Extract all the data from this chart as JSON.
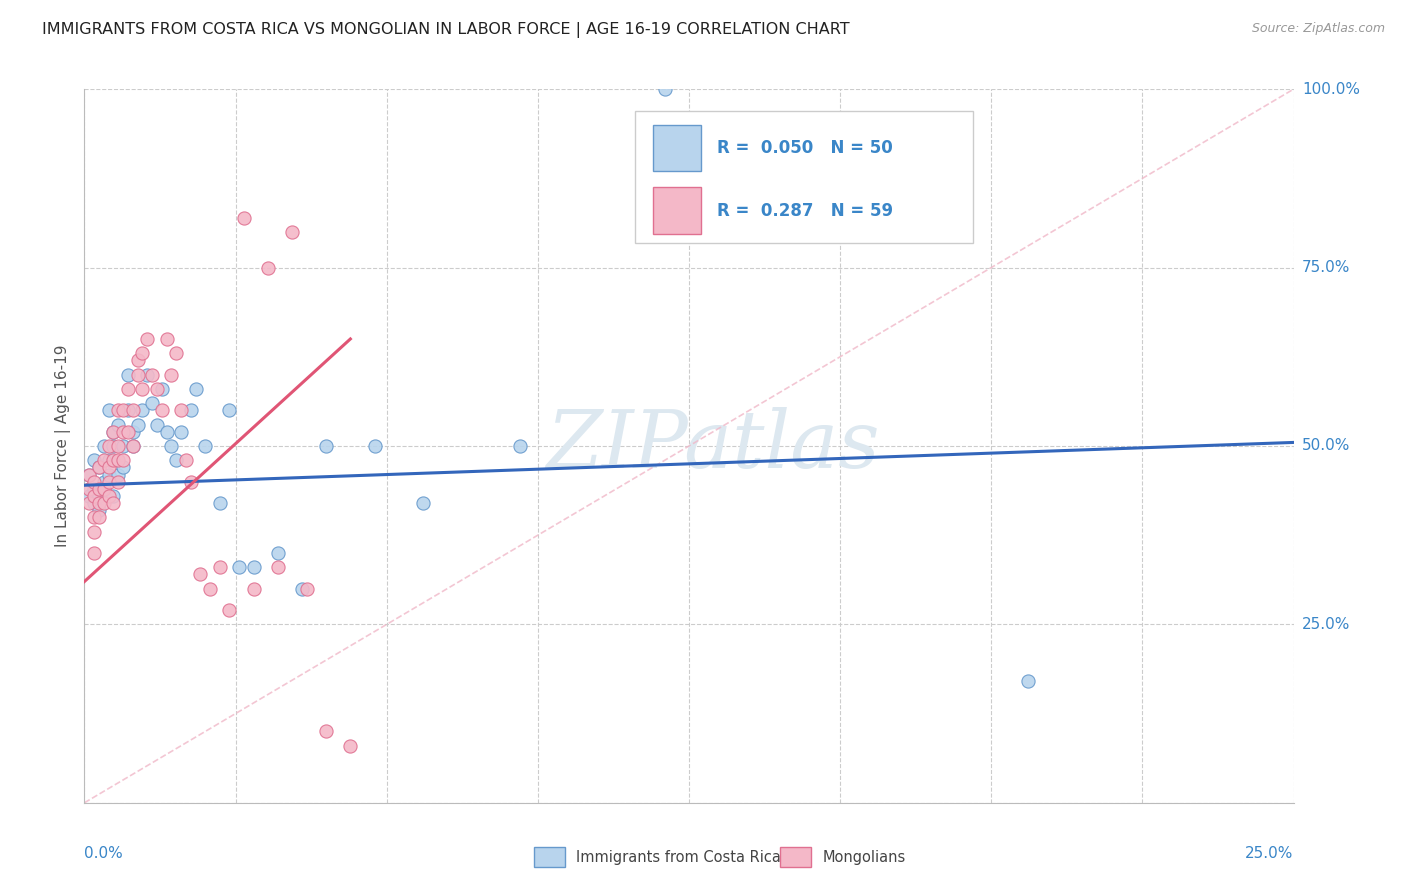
{
  "title": "IMMIGRANTS FROM COSTA RICA VS MONGOLIAN IN LABOR FORCE | AGE 16-19 CORRELATION CHART",
  "source": "Source: ZipAtlas.com",
  "ylabel_label": "In Labor Force | Age 16-19",
  "legend_label1": "Immigrants from Costa Rica",
  "legend_label2": "Mongolians",
  "legend_R1_val": "0.050",
  "legend_N1_val": "50",
  "legend_R2_val": "0.287",
  "legend_N2_val": "59",
  "color_costa_rica_fill": "#b8d4ed",
  "color_costa_rica_edge": "#6699cc",
  "color_mongolian_fill": "#f4b8c8",
  "color_mongolian_edge": "#e07090",
  "color_blue_line": "#3366bb",
  "color_pink_line": "#e05575",
  "color_diag_line": "#f0b8c8",
  "color_text_blue": "#3a86c8",
  "color_title": "#222222",
  "watermark": "ZIPatlas",
  "xlim": [
    0.0,
    0.25
  ],
  "ylim": [
    0.0,
    1.0
  ],
  "costa_rica_x": [
    0.001,
    0.001,
    0.002,
    0.002,
    0.002,
    0.003,
    0.003,
    0.003,
    0.004,
    0.004,
    0.004,
    0.005,
    0.005,
    0.005,
    0.006,
    0.006,
    0.006,
    0.007,
    0.007,
    0.008,
    0.008,
    0.009,
    0.009,
    0.01,
    0.01,
    0.011,
    0.012,
    0.013,
    0.014,
    0.015,
    0.016,
    0.017,
    0.018,
    0.019,
    0.02,
    0.022,
    0.023,
    0.025,
    0.028,
    0.03,
    0.032,
    0.035,
    0.04,
    0.045,
    0.05,
    0.06,
    0.07,
    0.09,
    0.12,
    0.195
  ],
  "costa_rica_y": [
    0.43,
    0.46,
    0.44,
    0.48,
    0.42,
    0.41,
    0.43,
    0.47,
    0.45,
    0.5,
    0.44,
    0.48,
    0.55,
    0.46,
    0.52,
    0.5,
    0.43,
    0.53,
    0.46,
    0.5,
    0.47,
    0.55,
    0.6,
    0.52,
    0.5,
    0.53,
    0.55,
    0.6,
    0.56,
    0.53,
    0.58,
    0.52,
    0.5,
    0.48,
    0.52,
    0.55,
    0.58,
    0.5,
    0.42,
    0.55,
    0.33,
    0.33,
    0.35,
    0.3,
    0.5,
    0.5,
    0.42,
    0.5,
    1.0,
    0.17
  ],
  "mongolian_x": [
    0.001,
    0.001,
    0.001,
    0.002,
    0.002,
    0.002,
    0.002,
    0.002,
    0.003,
    0.003,
    0.003,
    0.003,
    0.004,
    0.004,
    0.004,
    0.005,
    0.005,
    0.005,
    0.005,
    0.006,
    0.006,
    0.006,
    0.007,
    0.007,
    0.007,
    0.007,
    0.008,
    0.008,
    0.008,
    0.009,
    0.009,
    0.01,
    0.01,
    0.011,
    0.011,
    0.012,
    0.012,
    0.013,
    0.014,
    0.015,
    0.016,
    0.017,
    0.018,
    0.019,
    0.02,
    0.021,
    0.022,
    0.024,
    0.026,
    0.028,
    0.03,
    0.033,
    0.035,
    0.038,
    0.04,
    0.043,
    0.046,
    0.05,
    0.055
  ],
  "mongolian_y": [
    0.42,
    0.44,
    0.46,
    0.43,
    0.45,
    0.4,
    0.38,
    0.35,
    0.42,
    0.44,
    0.47,
    0.4,
    0.44,
    0.48,
    0.42,
    0.45,
    0.5,
    0.43,
    0.47,
    0.48,
    0.52,
    0.42,
    0.55,
    0.5,
    0.45,
    0.48,
    0.52,
    0.55,
    0.48,
    0.52,
    0.58,
    0.55,
    0.5,
    0.6,
    0.62,
    0.58,
    0.63,
    0.65,
    0.6,
    0.58,
    0.55,
    0.65,
    0.6,
    0.63,
    0.55,
    0.48,
    0.45,
    0.32,
    0.3,
    0.33,
    0.27,
    0.82,
    0.3,
    0.75,
    0.33,
    0.8,
    0.3,
    0.1,
    0.08
  ],
  "blue_trend_x": [
    0.0,
    0.25
  ],
  "blue_trend_y": [
    0.445,
    0.505
  ],
  "pink_trend_x": [
    0.0,
    0.055
  ],
  "pink_trend_y": [
    0.31,
    0.65
  ]
}
